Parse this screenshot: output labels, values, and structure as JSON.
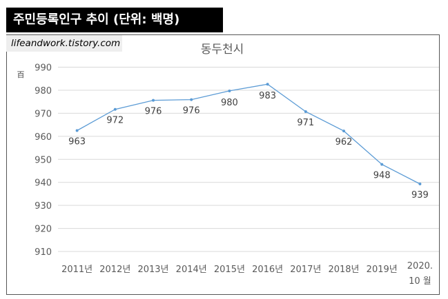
{
  "header": {
    "text": "주민등록인구 추이 (단위: 백명)"
  },
  "watermark": {
    "text": "lifeandwork.tistory.com"
  },
  "chart_data": {
    "type": "line",
    "title": "동두천시",
    "unit_label": "百",
    "categories": [
      "2011년",
      "2012년",
      "2013년",
      "2014년",
      "2015년",
      "2016년",
      "2017년",
      "2018년",
      "2019년",
      "2020. 10 월"
    ],
    "values": [
      962.5,
      971.7,
      975.6,
      975.9,
      979.7,
      982.6,
      970.7,
      962.3,
      947.8,
      939.3
    ],
    "data_labels": [
      "963",
      "972",
      "976",
      "976",
      "980",
      "983",
      "971",
      "962",
      "948",
      "939"
    ],
    "yticks": [
      "910",
      "920",
      "930",
      "940",
      "950",
      "960",
      "970",
      "980",
      "990"
    ],
    "ylim": [
      910,
      990
    ],
    "grid": true,
    "legend": "none",
    "line_color": "#5b9bd5",
    "grid_color": "#d9d9d9"
  }
}
